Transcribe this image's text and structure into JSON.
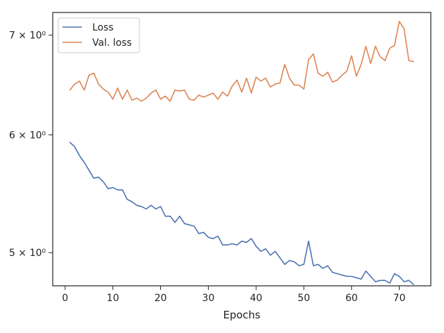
{
  "chart_data": {
    "type": "line",
    "title": "",
    "xlabel": "Epochs",
    "ylabel": "",
    "xlim": [
      -2.6,
      76.6
    ],
    "ylim": [
      4.75,
      7.25
    ],
    "yscale": "log",
    "xticks": [
      0,
      10,
      20,
      30,
      40,
      50,
      60,
      70
    ],
    "xtick_labels": [
      "0",
      "10",
      "20",
      "30",
      "40",
      "50",
      "60",
      "70"
    ],
    "yticks": [
      5,
      6,
      7
    ],
    "ytick_labels": [
      "5 × 10⁰",
      "6 × 10⁰",
      "7 × 10⁰"
    ],
    "grid": false,
    "legend_position": "top-left",
    "x": [
      1,
      2,
      3,
      4,
      5,
      6,
      7,
      8,
      9,
      10,
      11,
      12,
      13,
      14,
      15,
      16,
      17,
      18,
      19,
      20,
      21,
      22,
      23,
      24,
      25,
      26,
      27,
      28,
      29,
      30,
      31,
      32,
      33,
      34,
      35,
      36,
      37,
      38,
      39,
      40,
      41,
      42,
      43,
      44,
      45,
      46,
      47,
      48,
      49,
      50,
      51,
      52,
      53,
      54,
      55,
      56,
      57,
      58,
      59,
      60,
      61,
      62,
      63,
      64,
      65,
      66,
      67,
      68,
      69,
      70,
      71,
      72,
      73
    ],
    "series": [
      {
        "name": "Loss",
        "color": "#4c72b0",
        "values": [
          5.93,
          5.89,
          5.81,
          5.75,
          5.68,
          5.61,
          5.62,
          5.58,
          5.52,
          5.53,
          5.51,
          5.51,
          5.43,
          5.41,
          5.38,
          5.37,
          5.35,
          5.38,
          5.35,
          5.37,
          5.29,
          5.29,
          5.24,
          5.29,
          5.23,
          5.22,
          5.21,
          5.15,
          5.16,
          5.12,
          5.11,
          5.13,
          5.06,
          5.06,
          5.07,
          5.06,
          5.09,
          5.08,
          5.11,
          5.05,
          5.01,
          5.03,
          4.98,
          5.01,
          4.96,
          4.91,
          4.94,
          4.93,
          4.9,
          4.91,
          5.09,
          4.9,
          4.91,
          4.88,
          4.9,
          4.85,
          4.84,
          4.83,
          4.82,
          4.82,
          4.81,
          4.8,
          4.86,
          4.82,
          4.78,
          4.79,
          4.79,
          4.77,
          4.84,
          4.82,
          4.78,
          4.79,
          4.76
        ]
      },
      {
        "name": "Val. loss",
        "color": "#dd8452",
        "values": [
          6.43,
          6.49,
          6.52,
          6.43,
          6.58,
          6.6,
          6.49,
          6.44,
          6.41,
          6.34,
          6.45,
          6.34,
          6.43,
          6.33,
          6.35,
          6.32,
          6.35,
          6.4,
          6.43,
          6.34,
          6.37,
          6.32,
          6.43,
          6.42,
          6.43,
          6.34,
          6.33,
          6.38,
          6.36,
          6.38,
          6.4,
          6.34,
          6.41,
          6.37,
          6.47,
          6.53,
          6.41,
          6.55,
          6.4,
          6.56,
          6.52,
          6.55,
          6.46,
          6.49,
          6.5,
          6.69,
          6.55,
          6.48,
          6.48,
          6.44,
          6.74,
          6.8,
          6.6,
          6.57,
          6.61,
          6.51,
          6.53,
          6.58,
          6.62,
          6.78,
          6.57,
          6.69,
          6.88,
          6.7,
          6.88,
          6.77,
          6.73,
          6.86,
          6.89,
          7.15,
          7.07,
          6.73,
          6.72
        ]
      }
    ]
  }
}
